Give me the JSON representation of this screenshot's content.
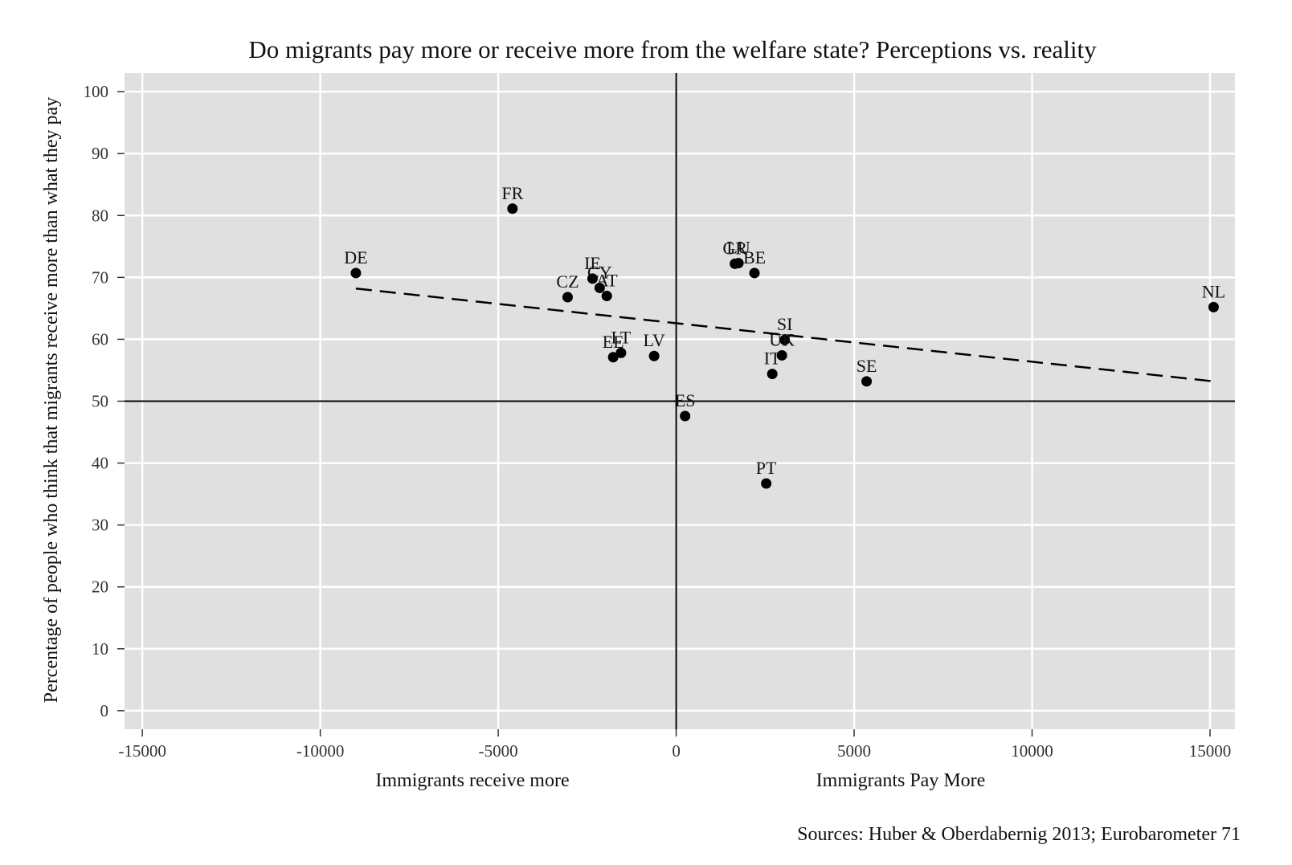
{
  "chart_data": {
    "type": "scatter",
    "title": "Do migrants pay more or receive more from the welfare state? Perceptions vs. reality",
    "ylabel": "Percentage of people who think that migrants receive more than what they pay",
    "xlabel_left": "Immigrants receive more",
    "xlabel_right": "Immigrants Pay More",
    "source": "Sources: Huber &  Oberdabernig 2013; Eurobarometer 71",
    "xlim": [
      -15500,
      15700
    ],
    "ylim": [
      -3,
      103
    ],
    "x_ticks": [
      -15000,
      -10000,
      -5000,
      0,
      5000,
      10000,
      15000
    ],
    "x_tick_labels": [
      "-15000",
      "-10000",
      "-5000",
      "0",
      "5000",
      "10000",
      "15000"
    ],
    "y_ticks": [
      0,
      10,
      20,
      30,
      40,
      50,
      60,
      70,
      80,
      90,
      100
    ],
    "y_tick_labels": [
      "0",
      "10",
      "20",
      "30",
      "40",
      "50",
      "60",
      "70",
      "80",
      "90",
      "100"
    ],
    "reference_lines": {
      "x": 0,
      "y": 50
    },
    "trend_line": {
      "x": [
        -9000,
        15100
      ],
      "y": [
        68.2,
        53.2
      ],
      "style": "dashed"
    },
    "points": [
      {
        "label": "DE",
        "x": -9000,
        "y": 70.7
      },
      {
        "label": "FR",
        "x": -4600,
        "y": 81.1
      },
      {
        "label": "IE",
        "x": -2350,
        "y": 69.8
      },
      {
        "label": "CY",
        "x": -2150,
        "y": 68.3
      },
      {
        "label": "AT",
        "x": -1950,
        "y": 67.0
      },
      {
        "label": "CZ",
        "x": -3050,
        "y": 66.8
      },
      {
        "label": "EE",
        "x": -1770,
        "y": 57.1
      },
      {
        "label": "LT",
        "x": -1550,
        "y": 57.8
      },
      {
        "label": "LV",
        "x": -620,
        "y": 57.3
      },
      {
        "label": "ES",
        "x": 250,
        "y": 47.6
      },
      {
        "label": "GR",
        "x": 1650,
        "y": 72.2
      },
      {
        "label": "LU",
        "x": 1750,
        "y": 72.3
      },
      {
        "label": "BE",
        "x": 2200,
        "y": 70.7
      },
      {
        "label": "SI",
        "x": 3050,
        "y": 59.9
      },
      {
        "label": "UK",
        "x": 2970,
        "y": 57.4
      },
      {
        "label": "IT",
        "x": 2700,
        "y": 54.4
      },
      {
        "label": "PT",
        "x": 2530,
        "y": 36.7
      },
      {
        "label": "SE",
        "x": 5350,
        "y": 53.2
      },
      {
        "label": "NL",
        "x": 15100,
        "y": 65.2
      }
    ],
    "grid": true,
    "background": "#e0e0e0",
    "marker_color": "#000000",
    "grid_color": "#ffffff"
  }
}
